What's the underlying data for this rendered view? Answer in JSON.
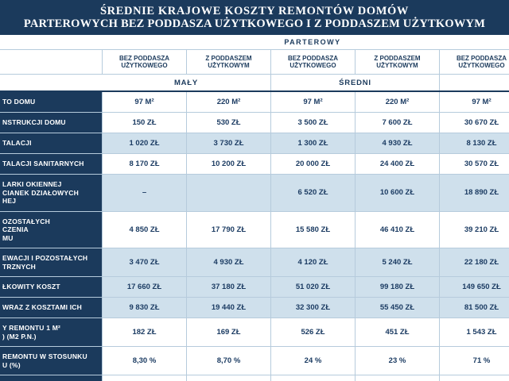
{
  "colors": {
    "navy": "#1b3a5c",
    "stripe": "#cfe0ec",
    "body_text": "#1c3c63",
    "grid": "#b6cbdc"
  },
  "chart_data": {
    "type": "table",
    "title_line1": "ŚREDNIE KRAJOWE KOSZTY REMONTÓW DOMÓW",
    "title_line2": "PARTEROWYCH BEZ PODDASZA UŻYTKOWEGO I Z PODDASZEM UŻYTKOWYM",
    "group_label": "PARTEROWY",
    "size_labels": [
      "MAŁY",
      "ŚREDNI"
    ],
    "columns": [
      "BEZ PODDASZA UŻYTKOWEGO",
      "Z PODDASZEM UŻYTKOWYM",
      "BEZ PODDASZA UŻYTKOWEGO",
      "Z PODDASZEM UŻYTKOWYM",
      "BEZ PODDASZA UŻYTKOWEGO"
    ],
    "rows": [
      {
        "label_lines": [
          "TO DOMU"
        ],
        "values": [
          "97 M²",
          "220 M²",
          "97 M²",
          "220 M²",
          "97 M²"
        ],
        "shaded": false
      },
      {
        "label_lines": [
          "NSTRUKCJI DOMU"
        ],
        "values": [
          "150 ZŁ",
          "530 ZŁ",
          "3 500 ZŁ",
          "7 600 ZŁ",
          "30 670 ZŁ"
        ],
        "shaded": false
      },
      {
        "label_lines": [
          "TALACJI"
        ],
        "values": [
          "1 020 ZŁ",
          "3 730 ZŁ",
          "1 300 ZŁ",
          "4 930 ZŁ",
          "8 130 ZŁ"
        ],
        "shaded": true
      },
      {
        "label_lines": [
          "TALACJI SANITARNYCH"
        ],
        "values": [
          "8 170 ZŁ",
          "10 200 ZŁ",
          "20 000 ZŁ",
          "24 400 ZŁ",
          "30 570 ZŁ"
        ],
        "shaded": false
      },
      {
        "label_lines": [
          "LARKI OKIENNEJ",
          "CIANEK DZIAŁOWYCH",
          "HEJ"
        ],
        "values": [
          "–",
          "",
          "6 520 ZŁ",
          "10 600 ZŁ",
          "18 890 ZŁ"
        ],
        "shaded": true
      },
      {
        "label_lines": [
          "OZOSTAŁYCH",
          "CZENIA",
          "MU"
        ],
        "values": [
          "4 850 ZŁ",
          "17 790 ZŁ",
          "15 580 ZŁ",
          "46 410 ZŁ",
          "39 210 ZŁ"
        ],
        "shaded": false
      },
      {
        "label_lines": [
          "EWACJI I POZOSTAŁYCH",
          "TRZNYCH"
        ],
        "values": [
          "3 470 ZŁ",
          "4 930 ZŁ",
          "4 120 ZŁ",
          "5 240 ZŁ",
          "22 180 ZŁ"
        ],
        "shaded": true
      },
      {
        "label_lines": [
          "ŁKOWITY KOSZT"
        ],
        "values": [
          "17 660 ZŁ",
          "37 180 ZŁ",
          "51 020 ZŁ",
          "99 180 ZŁ",
          "149 650 ZŁ"
        ],
        "shaded": true
      },
      {
        "label_lines": [
          "WRAZ Z KOSZTAMI ICH"
        ],
        "values": [
          "9 830 ZŁ",
          "19 440 ZŁ",
          "32 300 ZŁ",
          "55 450 ZŁ",
          "81 500 ZŁ"
        ],
        "shaded": true
      },
      {
        "label_lines": [
          "Y REMONTU 1 M²",
          ") (M2 P.N.)"
        ],
        "values": [
          "182 ZŁ",
          "169 ZŁ",
          "526 ZŁ",
          "451 ZŁ",
          "1 543 ZŁ"
        ],
        "shaded": false
      },
      {
        "label_lines": [
          "REMONTU W STOSUNKU",
          "U (%)"
        ],
        "values": [
          "8,30 %",
          "8,70 %",
          "24 %",
          "23 %",
          "71 %"
        ],
        "shaded": false
      }
    ]
  }
}
